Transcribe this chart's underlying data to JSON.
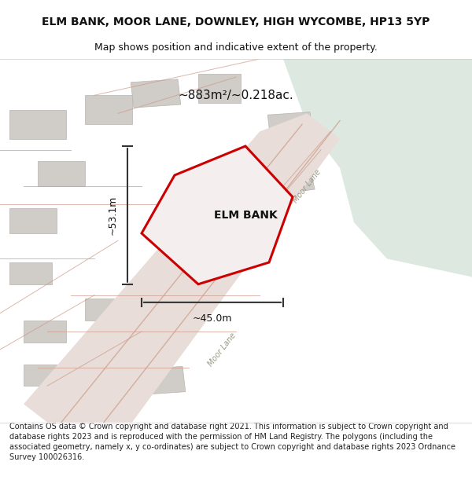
{
  "title_line1": "ELM BANK, MOOR LANE, DOWNLEY, HIGH WYCOMBE, HP13 5YP",
  "title_line2": "Map shows position and indicative extent of the property.",
  "area_label": "~883m²/~0.218ac.",
  "property_label": "ELM BANK",
  "width_label": "~45.0m",
  "height_label": "~53.1m",
  "footer_text": "Contains OS data © Crown copyright and database right 2021. This information is subject to Crown copyright and database rights 2023 and is reproduced with the permission of HM Land Registry. The polygons (including the associated geometry, namely x, y co-ordinates) are subject to Crown copyright and database rights 2023 Ordnance Survey 100026316.",
  "bg_color": "#f5f5f0",
  "map_bg": "#f0eeeb",
  "green_area_color": "#dde8e0",
  "road_color": "#e8d0c8",
  "building_color": "#d0ccc8",
  "property_outline_color": "#cc0000",
  "property_fill_color": "#f5f0ee",
  "dim_line_color": "#333333",
  "road_line_color": "#cc9988",
  "text_color": "#111111",
  "footer_color": "#222222",
  "figsize": [
    6.0,
    6.25
  ],
  "dpi": 100
}
